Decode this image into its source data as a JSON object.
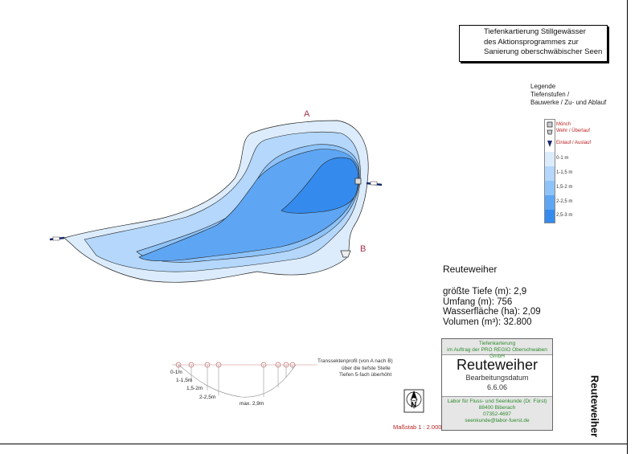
{
  "title_box": {
    "line1": "Tiefenkartierung Stillgewässer",
    "line2": "des Aktionsprogrammes zur",
    "line3": "Sanierung oberschwäbischer Seen"
  },
  "legend": {
    "heading1": "Legende",
    "heading2": "Tiefenstufen /",
    "heading3": "Bauwerke / Zu- und Ablauf",
    "structures": [
      {
        "label": "Mönch",
        "icon": "monk-structure-icon"
      },
      {
        "label": "Wehr / Überlauf",
        "icon": "weir-icon"
      },
      {
        "label": "Einlauf / Auslauf",
        "icon": "inlet-outlet-icon"
      }
    ],
    "depth_classes": [
      {
        "label": "0-1 m",
        "color": "#dcecfc"
      },
      {
        "label": "1-1,5 m",
        "color": "#b4d7fb"
      },
      {
        "label": "1,5-2 m",
        "color": "#8ec3fa"
      },
      {
        "label": "2-2,5 m",
        "color": "#5ea6f3"
      },
      {
        "label": "2,5-3 m",
        "color": "#348bed"
      }
    ]
  },
  "map": {
    "point_a": "A",
    "point_b": "B"
  },
  "lake": {
    "name": "Reuteweiher",
    "stats": [
      "größte Tiefe (m): 2,9",
      "Umfang (m): 756",
      "Wasserfläche (ha): 2,09",
      "Volumen (m³): 32.800"
    ]
  },
  "profile": {
    "depth_labels": [
      "0-1m",
      "1-1,5m",
      "1,5-2m",
      "2-2,5m",
      "max. 2,9m"
    ],
    "caption": [
      "Transsektenprofil (von A nach B)",
      "über die tiefste Stelle",
      "Tiefen 5-fach überhöht"
    ]
  },
  "north_arrow_label": "N",
  "scale": "Maßstab 1 : 2.000",
  "infobox": {
    "top_line1": "Tiefenkarterung",
    "top_line2": "im Auftrag der PRO REGIO Oberschwaben GmbH",
    "name": "Reuteweiher",
    "date_label": "Bearbeitungsdatum",
    "date": "6.6.06",
    "lab_lines": [
      "Labor für Fluss- und Seenkunde (Dr. Fürst)",
      "88400 Biberach",
      "07352-4697",
      "seenkunde@labor-fuerst.de"
    ]
  },
  "side_title": "Reuteweiher"
}
